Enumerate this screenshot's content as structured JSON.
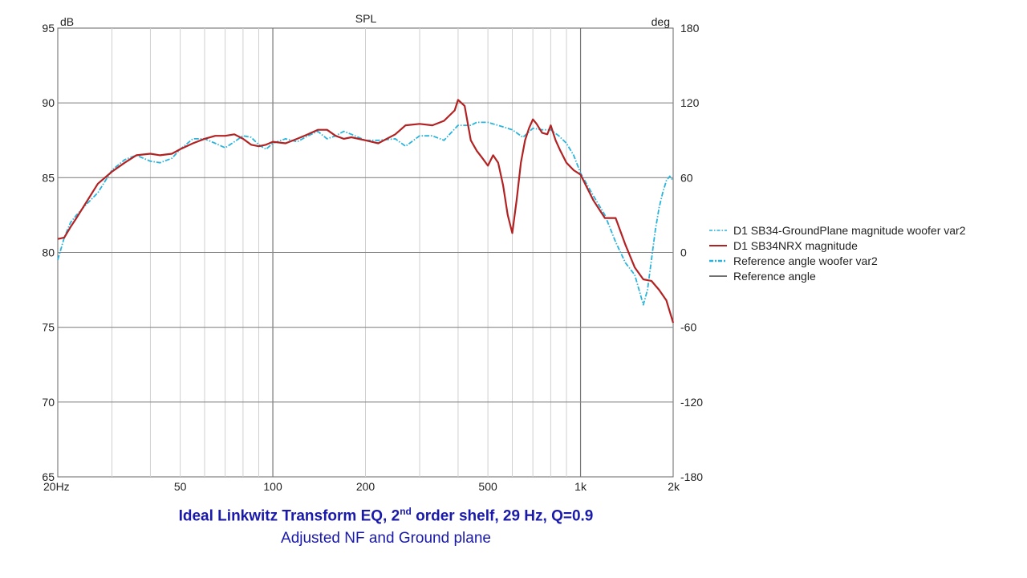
{
  "chart_data": {
    "type": "line",
    "title": "SPL",
    "ylabel": "dB",
    "y2label": "deg",
    "xscale": "log",
    "xlim": [
      20,
      2000
    ],
    "ylim": [
      65,
      95
    ],
    "y2lim": [
      -180,
      180
    ],
    "x_ticks": [
      {
        "value": 20,
        "label": "20Hz"
      },
      {
        "value": 50,
        "label": "50"
      },
      {
        "value": 100,
        "label": "100"
      },
      {
        "value": 200,
        "label": "200"
      },
      {
        "value": 500,
        "label": "500"
      },
      {
        "value": 1000,
        "label": "1k"
      },
      {
        "value": 2000,
        "label": "2k"
      }
    ],
    "y_ticks": [
      "65",
      "70",
      "75",
      "80",
      "85",
      "90",
      "95"
    ],
    "y2_ticks": [
      "-180",
      "-120",
      "-60",
      "0",
      "60",
      "120",
      "180"
    ],
    "grid": true,
    "legend_position": "right",
    "series": [
      {
        "name": "D1 SB34-GroundPlane magnitude woofer var2",
        "color": "#2ab4dc",
        "style": "dash-dot",
        "x": [
          20,
          21,
          22,
          23,
          25,
          27,
          30,
          33,
          36,
          40,
          43,
          47,
          50,
          55,
          60,
          65,
          70,
          75,
          80,
          85,
          90,
          95,
          100,
          110,
          120,
          130,
          140,
          150,
          160,
          170,
          180,
          200,
          220,
          250,
          270,
          300,
          330,
          360,
          400,
          440,
          460,
          500,
          560,
          600,
          650,
          700,
          750,
          800,
          850,
          900,
          950,
          1000,
          1100,
          1200,
          1300,
          1400,
          1500,
          1550,
          1600,
          1650,
          1700,
          1750,
          1800,
          1850,
          1900,
          1950,
          2000
        ],
        "y": [
          79.5,
          81,
          82,
          82.5,
          83.3,
          84,
          85.5,
          86.2,
          86.5,
          86.1,
          86,
          86.3,
          86.9,
          87.6,
          87.6,
          87.3,
          87.0,
          87.4,
          87.8,
          87.7,
          87.2,
          86.9,
          87.3,
          87.6,
          87.4,
          87.8,
          88.1,
          87.6,
          87.8,
          88.1,
          87.9,
          87.5,
          87.5,
          87.6,
          87.1,
          87.8,
          87.8,
          87.5,
          88.5,
          88.5,
          88.7,
          88.7,
          88.4,
          88.2,
          87.7,
          88.3,
          88.2,
          88.2,
          87.8,
          87.3,
          86.5,
          85.3,
          83.8,
          82.5,
          80.7,
          79.3,
          78.5,
          77.5,
          76.5,
          77.5,
          79.5,
          81.5,
          83.0,
          84.0,
          84.8,
          85.1,
          84.8
        ]
      },
      {
        "name": "D1 SB34NRX magnitude",
        "color": "#b22222",
        "style": "solid",
        "x": [
          20,
          21,
          22,
          23,
          25,
          27,
          30,
          33,
          36,
          40,
          43,
          47,
          50,
          55,
          60,
          65,
          70,
          75,
          80,
          85,
          90,
          95,
          100,
          110,
          120,
          130,
          140,
          150,
          160,
          170,
          180,
          200,
          220,
          250,
          270,
          300,
          330,
          360,
          390,
          400,
          420,
          440,
          460,
          480,
          500,
          520,
          540,
          560,
          580,
          600,
          620,
          640,
          660,
          680,
          700,
          720,
          750,
          780,
          800,
          830,
          860,
          900,
          950,
          1000,
          1100,
          1200,
          1300,
          1400,
          1500,
          1600,
          1700,
          1800,
          1900,
          2000
        ],
        "y": [
          80.9,
          81,
          81.7,
          82.3,
          83.5,
          84.6,
          85.4,
          86.0,
          86.5,
          86.6,
          86.5,
          86.6,
          86.9,
          87.3,
          87.6,
          87.8,
          87.8,
          87.9,
          87.6,
          87.2,
          87.1,
          87.2,
          87.4,
          87.3,
          87.6,
          87.9,
          88.2,
          88.2,
          87.8,
          87.6,
          87.7,
          87.5,
          87.3,
          87.9,
          88.5,
          88.6,
          88.5,
          88.8,
          89.5,
          90.2,
          89.8,
          87.5,
          86.8,
          86.3,
          85.8,
          86.5,
          86.0,
          84.5,
          82.5,
          81.3,
          83.5,
          86.0,
          87.5,
          88.3,
          88.9,
          88.6,
          88.0,
          87.9,
          88.5,
          87.5,
          86.8,
          86.0,
          85.5,
          85.2,
          83.5,
          82.3,
          82.3,
          80.5,
          79.0,
          78.2,
          78.1,
          77.5,
          76.8,
          75.3
        ]
      },
      {
        "name": "Reference angle woofer var2",
        "color": "#2ab4dc",
        "style": "dash-dot-heavy"
      },
      {
        "name": "Reference angle",
        "color": "#707070",
        "style": "solid"
      }
    ]
  },
  "caption": {
    "line1_pre": "Ideal Linkwitz Transform EQ, 2",
    "line1_sup": "nd",
    "line1_post": " order shelf, 29 Hz, Q=0.9",
    "line2": "Adjusted NF and Ground plane"
  }
}
